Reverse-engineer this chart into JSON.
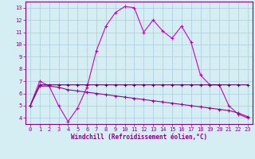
{
  "line1_x": [
    0,
    1,
    2,
    3,
    4,
    5,
    6,
    7,
    8,
    9,
    10,
    11,
    12,
    13,
    14,
    15,
    16,
    17,
    18,
    19,
    20,
    21,
    22,
    23
  ],
  "line1_y": [
    5,
    7,
    6.6,
    5,
    3.7,
    4.8,
    6.5,
    9.5,
    11.5,
    12.6,
    13.1,
    13.0,
    11.0,
    12.0,
    11.1,
    10.5,
    11.5,
    10.2,
    7.5,
    6.7,
    6.7,
    5.0,
    4.3,
    4.0
  ],
  "line2_x": [
    0,
    1,
    2,
    3,
    4,
    5,
    6,
    7,
    8,
    9,
    10,
    11,
    12,
    13,
    14,
    15,
    16,
    17,
    18,
    19,
    20,
    21,
    22,
    23
  ],
  "line2_y": [
    5.0,
    6.7,
    6.7,
    6.7,
    6.7,
    6.7,
    6.7,
    6.7,
    6.7,
    6.7,
    6.7,
    6.7,
    6.7,
    6.7,
    6.7,
    6.7,
    6.7,
    6.7,
    6.7,
    6.7,
    6.7,
    6.7,
    6.7,
    6.7
  ],
  "line3_x": [
    0,
    1,
    2,
    3,
    4,
    5,
    6,
    7,
    8,
    9,
    10,
    11,
    12,
    13,
    14,
    15,
    16,
    17,
    18,
    19,
    20,
    21,
    22,
    23
  ],
  "line3_y": [
    5.0,
    6.6,
    6.6,
    6.5,
    6.3,
    6.2,
    6.1,
    6.0,
    5.9,
    5.8,
    5.7,
    5.6,
    5.5,
    5.4,
    5.3,
    5.2,
    5.1,
    5.0,
    4.9,
    4.8,
    4.7,
    4.6,
    4.4,
    4.1
  ],
  "line1_color": "#cc00cc",
  "line2_color": "#660066",
  "line3_color": "#990099",
  "bg_color": "#d4eef4",
  "grid_color": "#aaccdd",
  "xlabel": "Windchill (Refroidissement éolien,°C)",
  "xlabel_color": "#880088",
  "tick_color": "#880088",
  "axis_color": "#880088",
  "ylim": [
    3.5,
    13.5
  ],
  "xlim": [
    -0.5,
    23.5
  ],
  "yticks": [
    4,
    5,
    6,
    7,
    8,
    9,
    10,
    11,
    12,
    13
  ],
  "xticks": [
    0,
    1,
    2,
    3,
    4,
    5,
    6,
    7,
    8,
    9,
    10,
    11,
    12,
    13,
    14,
    15,
    16,
    17,
    18,
    19,
    20,
    21,
    22,
    23
  ],
  "tick_fontsize": 5.0,
  "xlabel_fontsize": 5.5
}
